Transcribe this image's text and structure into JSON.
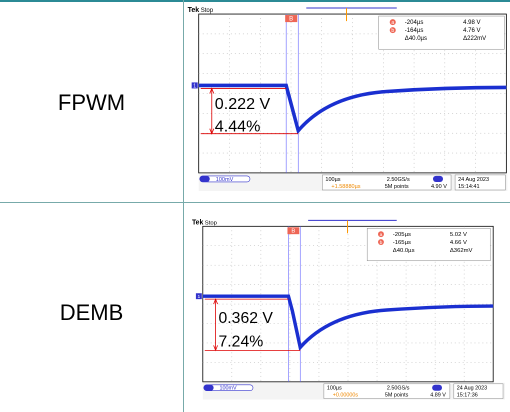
{
  "rows": [
    {
      "label": "FPWM",
      "annotation": {
        "volt": "0.222 V",
        "pct": "4.44%"
      },
      "scope": {
        "brand": "Tek",
        "status": "Stop",
        "trig_mark": "B",
        "cursor_a": {
          "id": "a",
          "time": "-204µs",
          "volt": "4.98 V"
        },
        "cursor_b": {
          "id": "b",
          "time": "-164µs",
          "volt": "4.76 V"
        },
        "delta_time": "Δ40.0µs",
        "delta_volt": "Δ222mV",
        "channel": "1",
        "ch_scale": "100mV",
        "timebase": "100µs",
        "sample_rate": "2.50GS/s",
        "trig_pos": "+1.58880µs",
        "points": "5M points",
        "trig_level": "4.90 V",
        "date": "24 Aug 2023",
        "time": "15:14:41"
      }
    },
    {
      "label": "DEMB",
      "annotation": {
        "volt": "0.362 V",
        "pct": "7.24%"
      },
      "scope": {
        "brand": "Tek",
        "status": "Stop",
        "trig_mark": "B",
        "cursor_a": {
          "id": "a",
          "time": "-205µs",
          "volt": "5.02 V"
        },
        "cursor_b": {
          "id": "b",
          "time": "-165µs",
          "volt": "4.66 V"
        },
        "delta_time": "Δ40.0µs",
        "delta_volt": "Δ362mV",
        "channel": "1",
        "ch_scale": "100mV",
        "timebase": "100µs",
        "sample_rate": "2.50GS/s",
        "trig_pos": "+0.00000s",
        "points": "5M points",
        "trig_level": "4.89 V",
        "date": "24 Aug 2023",
        "time": "15:17:36"
      }
    }
  ]
}
